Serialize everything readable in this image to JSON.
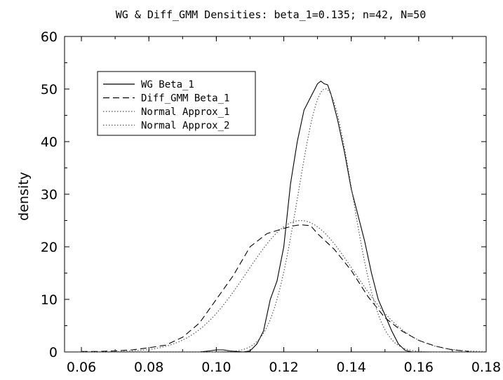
{
  "chart_data": {
    "type": "line",
    "title": "WG & Diff_GMM Densities: beta_1=0.135; n=42, N=50",
    "xlabel": "",
    "ylabel": "density",
    "xlim": [
      0.055,
      0.18
    ],
    "ylim": [
      0,
      60
    ],
    "x_ticks": [
      "0.06",
      "0.08",
      "0.10",
      "0.12",
      "0.14",
      "0.16",
      "0.18"
    ],
    "y_ticks": [
      "0",
      "10",
      "20",
      "30",
      "40",
      "50",
      "60"
    ],
    "grid": false,
    "legend_position": "top-left",
    "series": [
      {
        "name": "WG Beta_1",
        "style": "solid",
        "color": "#000000",
        "points": [
          [
            0.095,
            0.0
          ],
          [
            0.098,
            0.2
          ],
          [
            0.1,
            0.4
          ],
          [
            0.102,
            0.4
          ],
          [
            0.104,
            0.2
          ],
          [
            0.106,
            0.1
          ],
          [
            0.108,
            0.0
          ],
          [
            0.11,
            0.2
          ],
          [
            0.112,
            1.5
          ],
          [
            0.114,
            4.0
          ],
          [
            0.116,
            10.0
          ],
          [
            0.118,
            13.5
          ],
          [
            0.12,
            20.0
          ],
          [
            0.122,
            32.0
          ],
          [
            0.124,
            40.0
          ],
          [
            0.126,
            46.0
          ],
          [
            0.128,
            48.5
          ],
          [
            0.13,
            51.0
          ],
          [
            0.131,
            51.5
          ],
          [
            0.132,
            51.0
          ],
          [
            0.133,
            50.8
          ],
          [
            0.134,
            49.0
          ],
          [
            0.136,
            44.0
          ],
          [
            0.138,
            38.0
          ],
          [
            0.14,
            31.0
          ],
          [
            0.142,
            26.0
          ],
          [
            0.144,
            21.0
          ],
          [
            0.146,
            15.0
          ],
          [
            0.148,
            10.0
          ],
          [
            0.15,
            7.0
          ],
          [
            0.152,
            4.0
          ],
          [
            0.154,
            1.5
          ],
          [
            0.156,
            0.3
          ],
          [
            0.158,
            0.0
          ],
          [
            0.16,
            0.0
          ]
        ]
      },
      {
        "name": "Diff_GMM Beta_1",
        "style": "dashed",
        "color": "#000000",
        "points": [
          [
            0.06,
            0.1
          ],
          [
            0.065,
            0.1
          ],
          [
            0.07,
            0.2
          ],
          [
            0.075,
            0.4
          ],
          [
            0.08,
            0.8
          ],
          [
            0.085,
            1.3
          ],
          [
            0.09,
            2.8
          ],
          [
            0.095,
            5.5
          ],
          [
            0.1,
            10.0
          ],
          [
            0.105,
            14.5
          ],
          [
            0.11,
            20.0
          ],
          [
            0.115,
            22.5
          ],
          [
            0.12,
            23.5
          ],
          [
            0.123,
            24.0
          ],
          [
            0.125,
            24.2
          ],
          [
            0.128,
            24.0
          ],
          [
            0.13,
            22.5
          ],
          [
            0.135,
            19.5
          ],
          [
            0.14,
            15.5
          ],
          [
            0.145,
            10.5
          ],
          [
            0.15,
            6.5
          ],
          [
            0.155,
            4.0
          ],
          [
            0.16,
            2.2
          ],
          [
            0.165,
            1.1
          ],
          [
            0.17,
            0.4
          ],
          [
            0.175,
            0.1
          ]
        ]
      },
      {
        "name": "Normal Approx_1",
        "style": "dotted",
        "color": "#555555",
        "mean": 0.1323,
        "sd": 0.00797
      },
      {
        "name": "Normal Approx_2",
        "style": "dotted",
        "color": "#555555",
        "mean": 0.125,
        "sd": 0.01596
      }
    ]
  }
}
